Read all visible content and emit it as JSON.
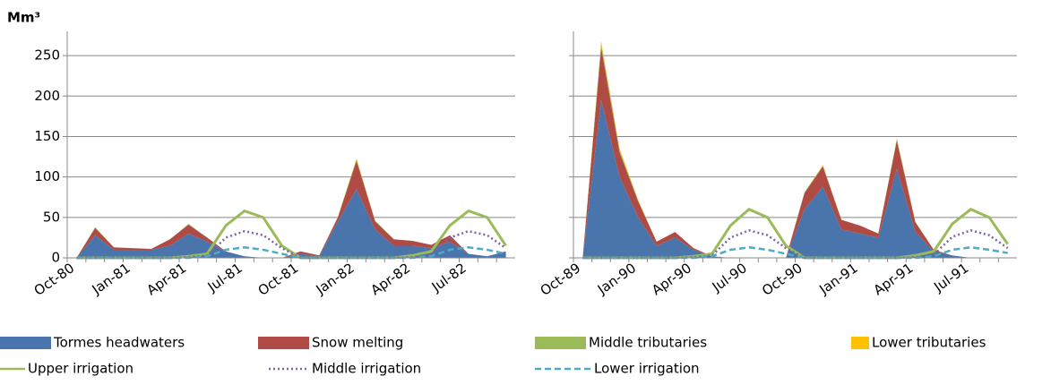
{
  "chart_data": [
    {
      "type": "stacked-area-line",
      "y_label": "Mm³",
      "categories": [
        "Oct-80",
        null,
        null,
        "Jan-81",
        null,
        null,
        "Apr-81",
        null,
        null,
        "Jul-81",
        null,
        null,
        "Oct-81",
        null,
        null,
        "Jan-82",
        null,
        null,
        "Apr-82",
        null,
        null,
        "Jul-82",
        null,
        null
      ],
      "ylim": [
        0,
        280
      ],
      "yticks": [
        0,
        50,
        100,
        150,
        200,
        250
      ],
      "grid": true,
      "show_ytick_labels": true,
      "series": [
        {
          "name": "Tormes headwaters",
          "color": "#4a74ac",
          "kind": "area",
          "values": [
            0,
            28,
            10,
            10,
            10,
            15,
            30,
            20,
            8,
            2,
            0,
            0,
            5,
            2,
            45,
            85,
            35,
            15,
            15,
            12,
            20,
            5,
            2,
            8
          ]
        },
        {
          "name": "Snow melting",
          "color": "#b04a45",
          "kind": "area",
          "values": [
            0,
            9,
            3,
            2,
            1,
            8,
            11,
            5,
            0,
            0,
            0,
            0,
            3,
            1,
            5,
            35,
            10,
            8,
            6,
            4,
            8,
            0,
            0,
            0
          ]
        },
        {
          "name": "Middle tributaries",
          "color": "#9bbb59",
          "kind": "area",
          "values": [
            0,
            1,
            0,
            0,
            0,
            0,
            1,
            0,
            0,
            0,
            0,
            0,
            0,
            0,
            1,
            2,
            1,
            0,
            0,
            0,
            0,
            0,
            0,
            0
          ]
        },
        {
          "name": "Lower tributaries",
          "color": "#ffc000",
          "kind": "area",
          "values": [
            0,
            0,
            0,
            0,
            0,
            0,
            0,
            0,
            0,
            0,
            0,
            0,
            0,
            0,
            0,
            1,
            0,
            0,
            0,
            0,
            0,
            0,
            0,
            0
          ]
        },
        {
          "name": "Upper irrigation",
          "color": "#9bbb59",
          "kind": "line",
          "style": "solid",
          "values": [
            0,
            0,
            0,
            0,
            0,
            0,
            2,
            5,
            40,
            58,
            50,
            15,
            0,
            0,
            0,
            0,
            0,
            0,
            3,
            8,
            40,
            58,
            50,
            15
          ]
        },
        {
          "name": "Middle irrigation",
          "color": "#8064a2",
          "kind": "line",
          "style": "dotted",
          "values": [
            0,
            0,
            0,
            0,
            0,
            0,
            1,
            3,
            25,
            33,
            28,
            12,
            0,
            0,
            0,
            0,
            0,
            0,
            1,
            4,
            25,
            33,
            28,
            12
          ]
        },
        {
          "name": "Lower irrigation",
          "color": "#4bacc6",
          "kind": "line",
          "style": "dashed",
          "values": [
            0,
            0,
            0,
            0,
            0,
            0,
            0,
            2,
            10,
            13,
            10,
            5,
            0,
            0,
            0,
            0,
            0,
            0,
            0,
            2,
            10,
            13,
            10,
            5
          ]
        }
      ]
    },
    {
      "type": "stacked-area-line",
      "categories": [
        "Oct-89",
        null,
        null,
        "Jan-90",
        null,
        null,
        "Apr-90",
        null,
        null,
        "Jul-90",
        null,
        null,
        "Oct-90",
        null,
        null,
        "Jan-91",
        null,
        null,
        "Apr-91",
        null,
        null,
        "Jul-91",
        null,
        null
      ],
      "ylim": [
        0,
        280
      ],
      "yticks": [
        0,
        50,
        100,
        150,
        200,
        250
      ],
      "grid": true,
      "show_ytick_labels": false,
      "series": [
        {
          "values": [
            0,
            195,
            100,
            50,
            15,
            25,
            10,
            2,
            0,
            0,
            0,
            0,
            60,
            88,
            35,
            30,
            25,
            110,
            32,
            8,
            3,
            0,
            0,
            0
          ]
        },
        {
          "values": [
            0,
            65,
            30,
            20,
            5,
            7,
            2,
            0,
            0,
            0,
            0,
            0,
            20,
            25,
            12,
            10,
            5,
            35,
            12,
            2,
            0,
            0,
            0,
            0
          ]
        },
        {
          "values": [
            0,
            5,
            3,
            1,
            0,
            0,
            0,
            0,
            0,
            0,
            0,
            0,
            1,
            1,
            0,
            0,
            0,
            2,
            1,
            0,
            0,
            0,
            0,
            0
          ]
        },
        {
          "values": [
            0,
            3,
            2,
            1,
            0,
            0,
            0,
            0,
            0,
            0,
            0,
            0,
            0,
            1,
            0,
            0,
            0,
            1,
            0,
            0,
            0,
            0,
            0,
            0
          ]
        },
        {
          "values": [
            0,
            0,
            0,
            0,
            0,
            0,
            2,
            5,
            40,
            60,
            50,
            15,
            0,
            0,
            0,
            0,
            0,
            0,
            3,
            8,
            42,
            60,
            50,
            17
          ]
        },
        {
          "values": [
            0,
            0,
            0,
            0,
            0,
            0,
            1,
            3,
            25,
            34,
            28,
            12,
            0,
            0,
            0,
            0,
            0,
            0,
            1,
            4,
            26,
            34,
            28,
            12
          ]
        },
        {
          "values": [
            0,
            0,
            0,
            0,
            0,
            0,
            0,
            2,
            10,
            13,
            10,
            5,
            0,
            0,
            0,
            0,
            0,
            0,
            0,
            2,
            10,
            13,
            10,
            6
          ]
        }
      ]
    }
  ]
}
